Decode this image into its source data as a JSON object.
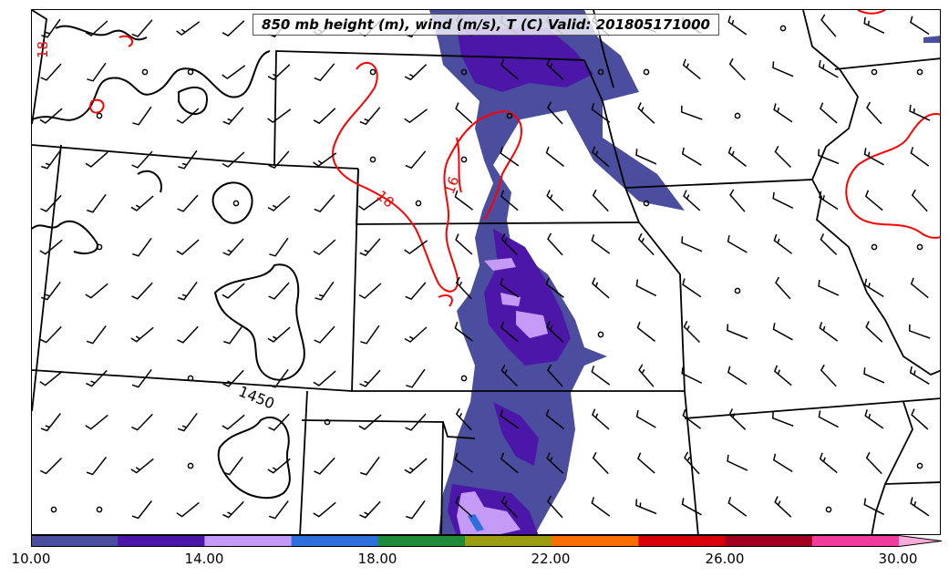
{
  "title": "850 mb height (m), wind (m/s), T (C) Valid: 201805171000",
  "contour_labels": {
    "height": "1450",
    "temp_a": "18",
    "temp_b": "18",
    "temp_c": "16"
  },
  "colorbar": {
    "tick_labels": [
      "10.00",
      "14.00",
      "18.00",
      "22.00",
      "26.00",
      "30.00"
    ],
    "colors": [
      "#4b4e9e",
      "#4c16a8",
      "#c59af7",
      "#2f6fdd",
      "#1f8a3a",
      "#9c9c12",
      "#fd6d00",
      "#d9000b",
      "#a1001f",
      "#f13c9e",
      "#fbaada"
    ],
    "extend": "max"
  },
  "colors": {
    "height_contour": "#000000",
    "temp_contour": "#ff0000",
    "boundaries": "#000000"
  }
}
